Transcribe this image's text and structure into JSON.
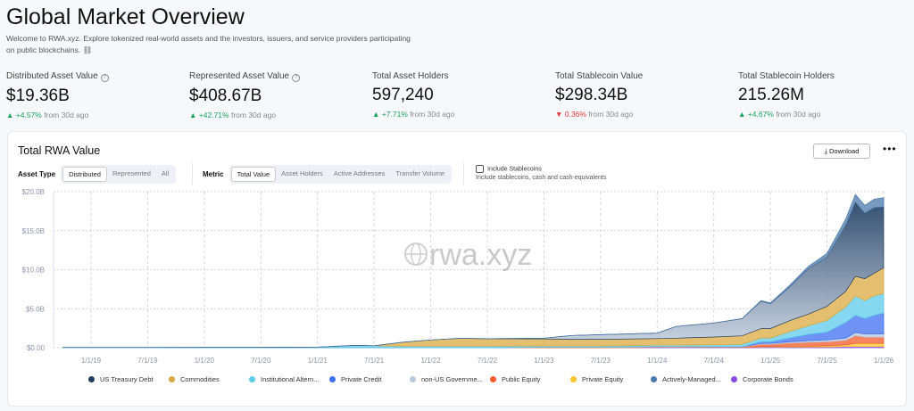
{
  "header": {
    "title": "Global Market Overview",
    "description": "Welcome to RWA.xyz. Explore tokenized real-world assets and the investors, issuers, and service providers participating on public blockchains. ⛓"
  },
  "stats": [
    {
      "label": "Distributed Asset Value",
      "info": true,
      "value": "$19.36B",
      "change": "+4.57%",
      "dir": "up",
      "suffix": "from 30d ago"
    },
    {
      "label": "Represented Asset Value",
      "info": true,
      "value": "$408.67B",
      "change": "+42.71%",
      "dir": "up",
      "suffix": "from 30d ago"
    },
    {
      "label": "Total Asset Holders",
      "info": false,
      "value": "597,240",
      "change": "+7.71%",
      "dir": "up",
      "suffix": "from 30d ago"
    },
    {
      "label": "Total Stablecoin Value",
      "info": false,
      "value": "$298.34B",
      "change": "0.36%",
      "dir": "down",
      "suffix": "from 30d ago"
    },
    {
      "label": "Total Stablecoin Holders",
      "info": false,
      "value": "215.26M",
      "change": "+4.67%",
      "dir": "up",
      "suffix": "from 30d ago"
    }
  ],
  "card": {
    "title": "Total RWA Value",
    "download": "Download",
    "more": "•••",
    "asset_type": {
      "label": "Asset Type",
      "options": [
        "Distributed",
        "Represented",
        "All"
      ],
      "selected": "Distributed"
    },
    "metric": {
      "label": "Metric",
      "options": [
        "Total Value",
        "Asset Holders",
        "Active Addresses",
        "Transfer Volume"
      ],
      "selected": "Total Value"
    },
    "stablecoins": {
      "label": "Include Stablecoins",
      "checked": false,
      "hint": "Include stablecoins, cash and cash-equivalents"
    },
    "watermark": "rwa.xyz"
  },
  "chart_data": {
    "type": "area",
    "stacked": true,
    "ylim": [
      0,
      20
    ],
    "yunit": "$B",
    "yticks": [
      "$0.00",
      "$5.0B",
      "$10.0B",
      "$15.0B",
      "$20.0B"
    ],
    "xticks": [
      "1/1/19",
      "7/1/19",
      "1/1/20",
      "7/1/20",
      "1/1/21",
      "7/1/21",
      "1/1/22",
      "7/1/22",
      "1/1/23",
      "7/1/23",
      "1/1/24",
      "7/1/24",
      "1/1/25",
      "7/1/25",
      "1/1/26"
    ],
    "grid": true,
    "legend": "bottom",
    "x": [
      "2018-10",
      "2019-01",
      "2019-07",
      "2020-01",
      "2020-07",
      "2021-01",
      "2021-05",
      "2021-07",
      "2021-10",
      "2022-01",
      "2022-04",
      "2022-07",
      "2023-01",
      "2023-04",
      "2023-07",
      "2024-01",
      "2024-03",
      "2024-07",
      "2024-10",
      "2024-12",
      "2025-01",
      "2025-03",
      "2025-05",
      "2025-07",
      "2025-09",
      "2025-10",
      "2025-11",
      "2025-12",
      "2026-01"
    ],
    "series": [
      {
        "name": "US Treasury Debt",
        "color": "#1f3d63",
        "values": [
          0,
          0,
          0,
          0,
          0,
          0,
          0,
          0,
          0,
          0,
          0,
          0,
          0.1,
          0.5,
          0.6,
          0.7,
          1.5,
          1.8,
          2.2,
          3.5,
          3.2,
          4.3,
          5.8,
          6.3,
          8.5,
          9.5,
          8.4,
          8.4,
          7.8
        ]
      },
      {
        "name": "Commodities",
        "color": "#d9a93f",
        "values": [
          0,
          0,
          0,
          0,
          0,
          0,
          0,
          0,
          0.5,
          0.8,
          1.0,
          0.95,
          0.9,
          0.85,
          0.85,
          0.85,
          0.9,
          1.0,
          1.1,
          1.2,
          1.2,
          1.4,
          1.5,
          1.8,
          2.0,
          2.5,
          2.8,
          2.9,
          3.3
        ]
      },
      {
        "name": "Institutional Altern...",
        "color": "#5ccbea",
        "values": [
          0.03,
          0.03,
          0.03,
          0.04,
          0.05,
          0.08,
          0.3,
          0.25,
          0.2,
          0.2,
          0.2,
          0.2,
          0.15,
          0.15,
          0.15,
          0.2,
          0.2,
          0.25,
          0.3,
          0.5,
          0.5,
          0.8,
          1.1,
          1.5,
          2.0,
          2.5,
          2.3,
          2.5,
          2.5
        ]
      },
      {
        "name": "Private Credit",
        "color": "#3d6ff2",
        "values": [
          0,
          0,
          0,
          0,
          0,
          0,
          0,
          0,
          0,
          0,
          0,
          0,
          0,
          0,
          0,
          0,
          0,
          0,
          0,
          0.2,
          0.2,
          0.5,
          0.8,
          1.0,
          2.0,
          2.2,
          2.0,
          2.4,
          2.7
        ]
      },
      {
        "name": "non-US Governme...",
        "color": "#b8c8da",
        "values": [
          0,
          0,
          0,
          0,
          0,
          0,
          0,
          0,
          0,
          0,
          0,
          0,
          0.02,
          0.02,
          0.02,
          0.02,
          0.02,
          0.02,
          0.02,
          0.1,
          0.1,
          0.15,
          0.2,
          0.25,
          0.3,
          0.4,
          0.4,
          0.4,
          0.4
        ]
      },
      {
        "name": "Public Equity",
        "color": "#f45a2b",
        "values": [
          0,
          0,
          0,
          0,
          0,
          0,
          0,
          0,
          0,
          0,
          0,
          0,
          0.05,
          0.05,
          0.05,
          0.05,
          0.05,
          0.05,
          0.05,
          0.3,
          0.3,
          0.4,
          0.5,
          0.5,
          0.6,
          1.0,
          0.8,
          0.8,
          0.8
        ]
      },
      {
        "name": "Private Equity",
        "color": "#f8c62c",
        "values": [
          0,
          0,
          0,
          0,
          0,
          0,
          0,
          0,
          0,
          0,
          0,
          0,
          0,
          0,
          0,
          0,
          0,
          0,
          0,
          0.05,
          0.05,
          0.1,
          0.1,
          0.15,
          0.2,
          0.4,
          0.4,
          0.4,
          0.4
        ]
      },
      {
        "name": "Actively-Managed...",
        "color": "#4a79ab",
        "values": [
          0,
          0,
          0,
          0,
          0,
          0,
          0,
          0,
          0,
          0,
          0,
          0,
          0,
          0,
          0,
          0,
          0,
          0,
          0,
          0.1,
          0.1,
          0.2,
          0.3,
          0.5,
          0.8,
          1.0,
          1.0,
          1.1,
          1.2
        ]
      },
      {
        "name": "Corporate Bonds",
        "color": "#8b4be2",
        "values": [
          0,
          0,
          0,
          0,
          0,
          0,
          0,
          0,
          0,
          0,
          0,
          0,
          0,
          0,
          0,
          0.05,
          0.05,
          0.05,
          0.05,
          0.1,
          0.1,
          0.1,
          0.1,
          0.1,
          0.15,
          0.15,
          0.15,
          0.15,
          0.15
        ]
      }
    ],
    "stack_order": [
      "Corporate Bonds",
      "Private Equity",
      "Public Equity",
      "non-US Governme...",
      "Private Credit",
      "Institutional Altern...",
      "Commodities",
      "US Treasury Debt",
      "Actively-Managed..."
    ]
  }
}
